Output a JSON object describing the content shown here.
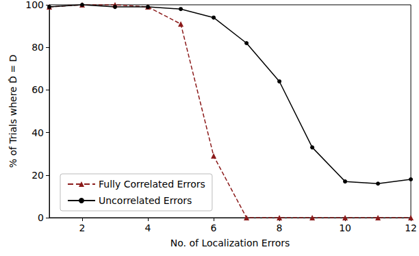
{
  "chart_data": {
    "type": "line",
    "x_label": "No. of Localization Errors",
    "y_label": "% of Trials where D̂ = D",
    "x": [
      1,
      2,
      3,
      4,
      5,
      6,
      7,
      8,
      9,
      10,
      11,
      12
    ],
    "series": [
      {
        "name": "Fully Correlated Errors",
        "color": "#8b1a1a",
        "marker": "triangle",
        "line_style": "dashed",
        "values": [
          99,
          100,
          100,
          99,
          91,
          29,
          0,
          0,
          0,
          0,
          0,
          0
        ]
      },
      {
        "name": "Uncorrelated Errors",
        "color": "#000000",
        "marker": "circle",
        "line_style": "solid",
        "values": [
          99,
          100,
          99,
          99,
          98,
          94,
          82,
          64,
          33,
          17,
          16,
          18
        ]
      }
    ],
    "xlim": [
      1,
      12
    ],
    "xticks": [
      2,
      4,
      6,
      8,
      10,
      12
    ],
    "ylim": [
      0,
      100
    ],
    "yticks": [
      0,
      20,
      40,
      60,
      80,
      100
    ],
    "grid": false,
    "legend": "lower left"
  }
}
